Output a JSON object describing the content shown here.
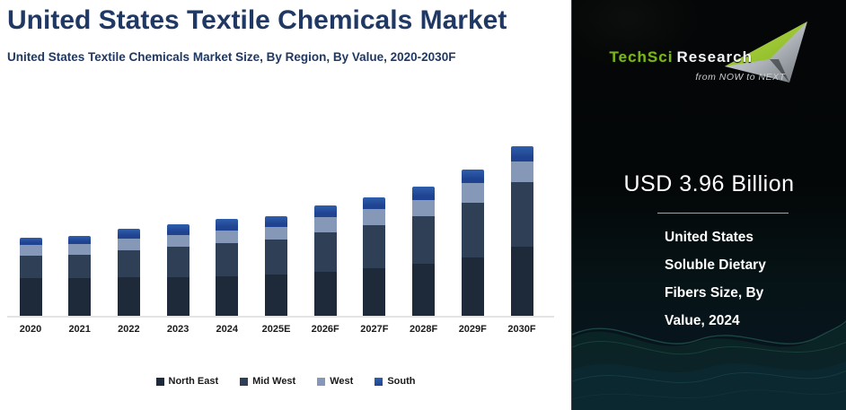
{
  "header": {
    "title": "United States Textile Chemicals Market",
    "subtitle": "United States Textile Chemicals Market Size, By Region, By Value, 2020-2030F"
  },
  "chart_data": {
    "type": "bar",
    "stacked": true,
    "title": "United States Textile Chemicals Market",
    "subtitle": "United States Textile Chemicals Market Size, By Region, By Value, 2020-2030F",
    "xlabel": "",
    "ylabel": "",
    "units": "relative height (no value axis shown in figure)",
    "grid": false,
    "legend_position": "bottom",
    "categories": [
      "2020",
      "2021",
      "2022",
      "2023",
      "2024",
      "2025E",
      "2026F",
      "2027F",
      "2028F",
      "2029F",
      "2030F"
    ],
    "series": [
      {
        "name": "North East",
        "color": "#1e2939",
        "values": [
          42,
          42,
          43,
          43,
          44,
          46,
          49,
          53,
          58,
          65,
          77
        ]
      },
      {
        "name": "Mid West",
        "color": "#2f4056",
        "values": [
          25,
          26,
          30,
          34,
          37,
          39,
          44,
          48,
          53,
          61,
          72
        ]
      },
      {
        "name": "West",
        "color": "#8598b7",
        "values": [
          12,
          12,
          13,
          13,
          14,
          14,
          17,
          18,
          18,
          22,
          23
        ]
      },
      {
        "name": "South",
        "color": "#1f4390",
        "color_top": "#2f5fad",
        "values": [
          8,
          9,
          11,
          12,
          13,
          12,
          13,
          13,
          15,
          15,
          17
        ]
      }
    ],
    "totals_relative": [
      87,
      89,
      97,
      102,
      108,
      111,
      123,
      132,
      144,
      163,
      189
    ]
  },
  "right_panel": {
    "logo": {
      "brand_primary": "TechSci",
      "brand_secondary": "Research",
      "tagline": "from NOW to NEXT",
      "brand_green": "#7ab41d",
      "arrow_green": "#a3cc3a",
      "arrow_silver": "#b9bec4"
    },
    "headline_value": "USD 3.96 Billion",
    "caption_lines": [
      "United States",
      "Soluble Dietary",
      "Fibers Size, By",
      "Value, 2024"
    ]
  }
}
